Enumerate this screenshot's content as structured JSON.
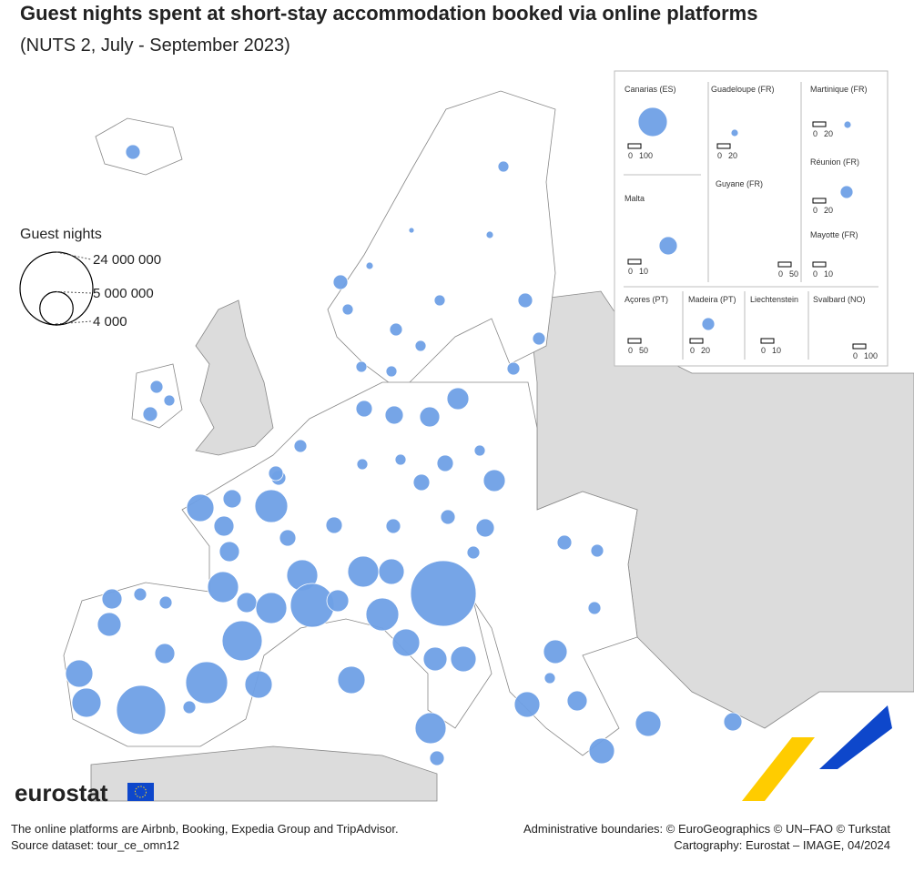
{
  "header": {
    "title": "Guest nights spent at short-stay accommodation booked via online platforms",
    "subtitle": "(NUTS 2, July - September 2023)"
  },
  "legend": {
    "title": "Guest nights",
    "sizes": [
      {
        "value": 24000000,
        "label": "24 000 000"
      },
      {
        "value": 5000000,
        "label": "5 000 000"
      },
      {
        "value": 4000,
        "label": "4 000"
      }
    ]
  },
  "map": {
    "bubble_color": "#6fa0e6",
    "bubbles": [
      960000,
      735000,
      960000,
      540000,
      960000,
      540000,
      240000,
      735000,
      540000,
      540000,
      135000,
      540000,
      960000,
      735000,
      240000,
      540000,
      540000,
      735000,
      2160000,
      1815000,
      1500000,
      1215000,
      2160000,
      540000,
      1215000,
      540000,
      540000,
      1215000,
      3375000,
      1500000,
      4860000,
      1815000,
      960000,
      1815000,
      1215000,
      4335000,
      1815000,
      4335000,
      4335000,
      8640000,
      2160000,
      3375000,
      1215000,
      4335000,
      2940000,
      19440000,
      4860000,
      3375000,
      2535000,
      2940000,
      4335000,
      960000,
      960000,
      960000,
      1500000,
      735000,
      960000,
      735000,
      735000,
      2535000,
      2940000,
      540000,
      1815000,
      2940000,
      2940000,
      1500000,
      1815000,
      2535000,
      735000,
      735000,
      1815000,
      3375000,
      3840000,
      10935000,
      7935000,
      7260000,
      3375000,
      735000,
      960000,
      735000,
      3840000,
      240000,
      240000,
      735000,
      1500000,
      735000
    ]
  },
  "insets": [
    {
      "title": "Canarias (ES)",
      "scale": [
        0,
        100
      ]
    },
    {
      "title": "Guadeloupe (FR)",
      "scale": [
        0,
        20
      ]
    },
    {
      "title": "Martinique (FR)",
      "scale": [
        0,
        20
      ]
    },
    {
      "title": "Réunion (FR)",
      "scale": [
        0,
        20
      ]
    },
    {
      "title": "Malta",
      "scale": [
        0,
        10
      ]
    },
    {
      "title": "Guyane (FR)",
      "scale": [
        0,
        50
      ]
    },
    {
      "title": "Mayotte (FR)",
      "scale": [
        0,
        10
      ]
    },
    {
      "title": "Açores (PT)",
      "scale": [
        0,
        50
      ]
    },
    {
      "title": "Madeira (PT)",
      "scale": [
        0,
        20
      ]
    },
    {
      "title": "Liechtenstein",
      "scale": [
        0,
        10
      ]
    },
    {
      "title": "Svalbard (NO)",
      "scale": [
        0,
        100
      ]
    }
  ],
  "footer": {
    "logo": "eurostat",
    "note": "The online platforms are Airbnb, Booking, Expedia Group and TripAdvisor.",
    "source": "Source dataset: tour_ce_omn12",
    "credits": "Administrative boundaries: © EuroGeographics © UN–FAO © Turkstat",
    "cartography": "Cartography: Eurostat – IMAGE, 04/2024"
  }
}
